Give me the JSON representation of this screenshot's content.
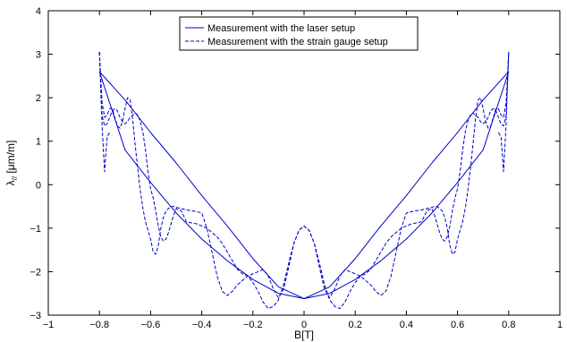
{
  "chart_data": {
    "type": "line",
    "title": "",
    "xlabel": "B[T]",
    "ylabel": "λ// [μm/m]",
    "ylabel_main": "λ",
    "ylabel_sub": "//",
    "ylabel_unit": " [μm/m]",
    "xlim": [
      -1,
      1
    ],
    "ylim": [
      -3,
      4
    ],
    "xticks": [
      -1,
      -0.8,
      -0.6,
      -0.4,
      -0.2,
      0,
      0.2,
      0.4,
      0.6,
      0.8,
      1
    ],
    "xtick_labels": [
      "−1",
      "−0.8",
      "−0.6",
      "−0.4",
      "−0.2",
      "0",
      "0.2",
      "0.4",
      "0.6",
      "0.8",
      "1"
    ],
    "yticks": [
      -3,
      -2,
      -1,
      0,
      1,
      2,
      3,
      4
    ],
    "ytick_labels": [
      "−3",
      "−2",
      "−1",
      "0",
      "1",
      "2",
      "3",
      "4"
    ],
    "grid": false,
    "legend_position": "top-center",
    "color": "#0000cc",
    "series": [
      {
        "name": "Measurement with the laser setup",
        "style": "solid",
        "branches": [
          {
            "x": [
              -0.8,
              -0.7,
              -0.6,
              -0.5,
              -0.4,
              -0.3,
              -0.2,
              -0.1,
              0,
              0.1,
              0.2,
              0.3,
              0.4,
              0.5,
              0.6,
              0.7,
              0.8
            ],
            "y": [
              2.6,
              1.95,
              1.2,
              0.5,
              -0.25,
              -0.95,
              -1.7,
              -2.35,
              -2.62,
              -2.5,
              -2.18,
              -1.75,
              -1.25,
              -0.65,
              0.05,
              0.8,
              2.6
            ]
          },
          {
            "x": [
              -0.8,
              -0.7,
              -0.6,
              -0.5,
              -0.4,
              -0.3,
              -0.2,
              -0.1,
              0,
              0.1,
              0.2,
              0.3,
              0.4,
              0.5,
              0.6,
              0.7,
              0.8
            ],
            "y": [
              2.6,
              0.8,
              0.05,
              -0.65,
              -1.25,
              -1.75,
              -2.18,
              -2.5,
              -2.62,
              -2.35,
              -1.7,
              -0.95,
              -0.25,
              0.5,
              1.2,
              1.95,
              2.6
            ]
          }
        ]
      },
      {
        "name": "Measurement with the strain gauge setup",
        "style": "dashed",
        "branches": [
          {
            "x": [
              -0.8,
              -0.79,
              -0.78,
              -0.77,
              -0.76,
              -0.75,
              -0.74,
              -0.73,
              -0.72,
              -0.71,
              -0.7,
              -0.69,
              -0.68,
              -0.67,
              -0.66,
              -0.65,
              -0.64,
              -0.63,
              -0.62,
              -0.61,
              -0.6,
              -0.59,
              -0.58,
              -0.57,
              -0.56,
              -0.55,
              -0.54,
              -0.53,
              -0.52,
              -0.51,
              -0.5,
              -0.48,
              -0.46,
              -0.44,
              -0.42,
              -0.4,
              -0.38,
              -0.36,
              -0.34,
              -0.32,
              -0.3,
              -0.28,
              -0.26,
              -0.24,
              -0.22,
              -0.2,
              -0.18,
              -0.16,
              -0.14,
              -0.12,
              -0.1,
              -0.08,
              -0.06,
              -0.04,
              -0.02,
              0,
              0.02,
              0.04,
              0.06,
              0.08,
              0.1,
              0.12,
              0.14,
              0.16,
              0.18,
              0.2,
              0.22,
              0.24,
              0.26,
              0.28,
              0.3,
              0.32,
              0.34,
              0.36,
              0.38,
              0.4,
              0.42,
              0.44,
              0.46,
              0.48,
              0.5,
              0.51,
              0.52,
              0.53,
              0.54,
              0.55,
              0.56,
              0.57,
              0.58,
              0.59,
              0.6,
              0.61,
              0.62,
              0.63,
              0.64,
              0.65,
              0.66,
              0.67,
              0.68,
              0.69,
              0.7,
              0.71,
              0.72,
              0.73,
              0.74,
              0.75,
              0.76,
              0.77,
              0.78,
              0.79,
              0.8
            ],
            "y": [
              3.05,
              1.9,
              1.55,
              1.6,
              1.75,
              1.75,
              1.55,
              1.35,
              1.3,
              1.45,
              1.75,
              2.0,
              1.95,
              1.5,
              0.9,
              0.35,
              -0.15,
              -0.55,
              -0.85,
              -1.05,
              -1.25,
              -1.55,
              -1.6,
              -1.4,
              -1.0,
              -0.75,
              -0.6,
              -0.55,
              -0.5,
              -0.5,
              -0.52,
              -0.55,
              -0.58,
              -0.6,
              -0.62,
              -0.65,
              -1.0,
              -1.55,
              -2.1,
              -2.45,
              -2.55,
              -2.45,
              -2.3,
              -2.2,
              -2.1,
              -2.05,
              -2.0,
              -1.95,
              -2.1,
              -2.4,
              -2.6,
              -2.4,
              -1.9,
              -1.35,
              -1.05,
              -0.95,
              -1.05,
              -1.35,
              -1.8,
              -2.3,
              -2.65,
              -2.8,
              -2.85,
              -2.7,
              -2.45,
              -2.25,
              -2.1,
              -2.05,
              -1.95,
              -1.75,
              -1.55,
              -1.35,
              -1.2,
              -1.1,
              -1.0,
              -0.95,
              -0.9,
              -0.88,
              -0.85,
              -0.6,
              -0.55,
              -0.7,
              -0.9,
              -1.1,
              -1.25,
              -1.3,
              -1.2,
              -0.95,
              -0.6,
              -0.3,
              -0.1,
              0.3,
              0.8,
              1.2,
              1.45,
              1.6,
              1.65,
              1.6,
              1.55,
              1.45,
              1.4,
              1.45,
              1.55,
              1.7,
              1.75,
              1.7,
              1.55,
              1.4,
              1.35,
              1.6,
              3.05
            ]
          },
          {
            "x": [
              -0.8,
              -0.79,
              -0.78,
              -0.77,
              -0.76,
              -0.75,
              -0.74,
              -0.73,
              -0.72,
              -0.71,
              -0.7,
              -0.69,
              -0.68,
              -0.67,
              -0.66,
              -0.65,
              -0.64,
              -0.63,
              -0.62,
              -0.61,
              -0.6,
              -0.59,
              -0.58,
              -0.57,
              -0.56,
              -0.55,
              -0.54,
              -0.53,
              -0.52,
              -0.51,
              -0.5,
              -0.48,
              -0.46,
              -0.44,
              -0.42,
              -0.4,
              -0.38,
              -0.36,
              -0.34,
              -0.32,
              -0.3,
              -0.28,
              -0.26,
              -0.24,
              -0.22,
              -0.2,
              -0.18,
              -0.16,
              -0.14,
              -0.12,
              -0.1,
              -0.08,
              -0.06,
              -0.04,
              -0.02,
              0,
              0.02,
              0.04,
              0.06,
              0.08,
              0.1,
              0.12,
              0.14,
              0.16,
              0.18,
              0.2,
              0.22,
              0.24,
              0.26,
              0.28,
              0.3,
              0.32,
              0.34,
              0.36,
              0.38,
              0.4,
              0.42,
              0.44,
              0.46,
              0.48,
              0.5,
              0.51,
              0.52,
              0.53,
              0.54,
              0.55,
              0.56,
              0.57,
              0.58,
              0.59,
              0.6,
              0.61,
              0.62,
              0.63,
              0.64,
              0.65,
              0.66,
              0.67,
              0.68,
              0.69,
              0.7,
              0.71,
              0.72,
              0.73,
              0.74,
              0.75,
              0.76,
              0.77,
              0.78,
              0.79,
              0.8
            ],
            "y": [
              3.05,
              1.6,
              1.35,
              1.4,
              1.55,
              1.7,
              1.75,
              1.7,
              1.55,
              1.45,
              1.4,
              1.45,
              1.55,
              1.6,
              1.65,
              1.6,
              1.45,
              1.2,
              0.8,
              0.3,
              -0.1,
              -0.3,
              -0.6,
              -0.95,
              -1.2,
              -1.3,
              -1.25,
              -1.1,
              -0.9,
              -0.7,
              -0.55,
              -0.6,
              -0.85,
              -0.88,
              -0.9,
              -0.95,
              -1.0,
              -1.1,
              -1.2,
              -1.35,
              -1.55,
              -1.75,
              -1.95,
              -2.05,
              -2.1,
              -2.25,
              -2.45,
              -2.7,
              -2.85,
              -2.8,
              -2.65,
              -2.3,
              -1.8,
              -1.35,
              -1.05,
              -0.95,
              -1.05,
              -1.35,
              -1.9,
              -2.4,
              -2.6,
              -2.4,
              -2.1,
              -1.95,
              -2.0,
              -2.05,
              -2.1,
              -2.2,
              -2.3,
              -2.45,
              -2.55,
              -2.45,
              -2.1,
              -1.55,
              -1.0,
              -0.65,
              -0.62,
              -0.6,
              -0.58,
              -0.55,
              -0.52,
              -0.5,
              -0.5,
              -0.55,
              -0.6,
              -0.75,
              -1.0,
              -1.4,
              -1.6,
              -1.55,
              -1.25,
              -1.05,
              -0.85,
              -0.55,
              -0.15,
              0.35,
              0.9,
              1.5,
              1.95,
              2.0,
              1.75,
              1.45,
              1.3,
              1.35,
              1.55,
              1.75,
              1.75,
              1.6,
              1.55,
              1.9,
              3.05
            ]
          },
          {
            "x": [
              -0.8,
              -0.79,
              -0.78,
              -0.77,
              -0.76
            ],
            "y": [
              3.05,
              1.4,
              0.3,
              1.1,
              1.2
            ]
          },
          {
            "x": [
              0.76,
              0.77,
              0.78,
              0.79,
              0.8
            ],
            "y": [
              1.2,
              1.1,
              0.3,
              1.4,
              3.05
            ]
          }
        ]
      }
    ]
  }
}
